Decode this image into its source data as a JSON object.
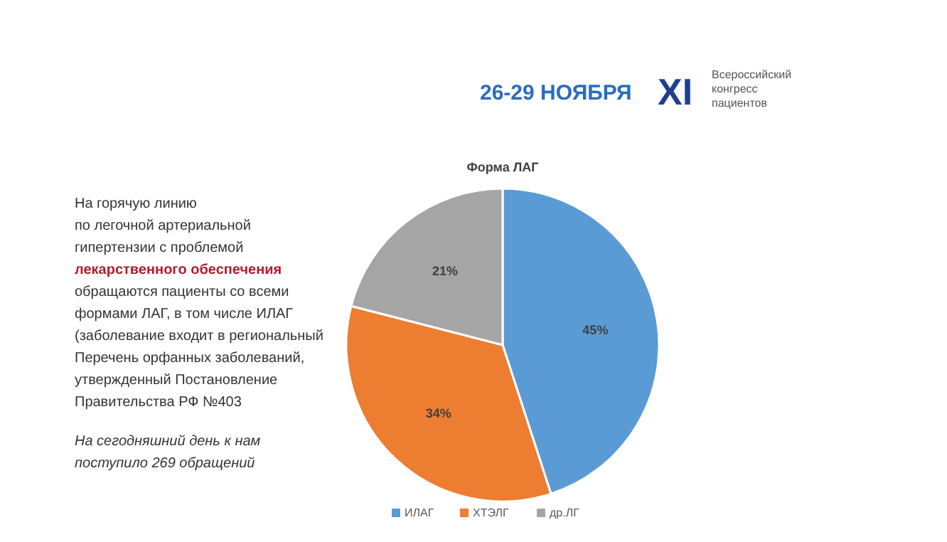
{
  "chart_data": {
    "type": "pie",
    "title": "Форма ЛАГ",
    "categories": [
      "ИЛАГ",
      "ХТЭЛГ",
      "др.ЛГ"
    ],
    "values": [
      45,
      34,
      21
    ],
    "colors": [
      "#5b9bd5",
      "#ed7d31",
      "#a5a5a5"
    ],
    "value_labels": [
      "45%",
      "34%",
      "21%"
    ],
    "legend": "bottom",
    "annotations": [
      "26-29 НОЯБРЯ",
      "XI",
      "Всероссийский",
      "конгресс",
      "пациентов",
      "На горячую линию",
      "по легочной артериальной",
      "гипертензии с проблемой",
      "лекарственного обеспечения",
      "обращаются пациенты со всеми",
      "формами ЛАГ, в том числе ИЛАГ",
      "(заболевание входит в региональный",
      "Перечень орфанных заболеваний,",
      "утвержденный Постановление",
      "Правительства РФ №403",
      "На сегодняшний день к нам",
      "поступило 269 обращений"
    ]
  }
}
